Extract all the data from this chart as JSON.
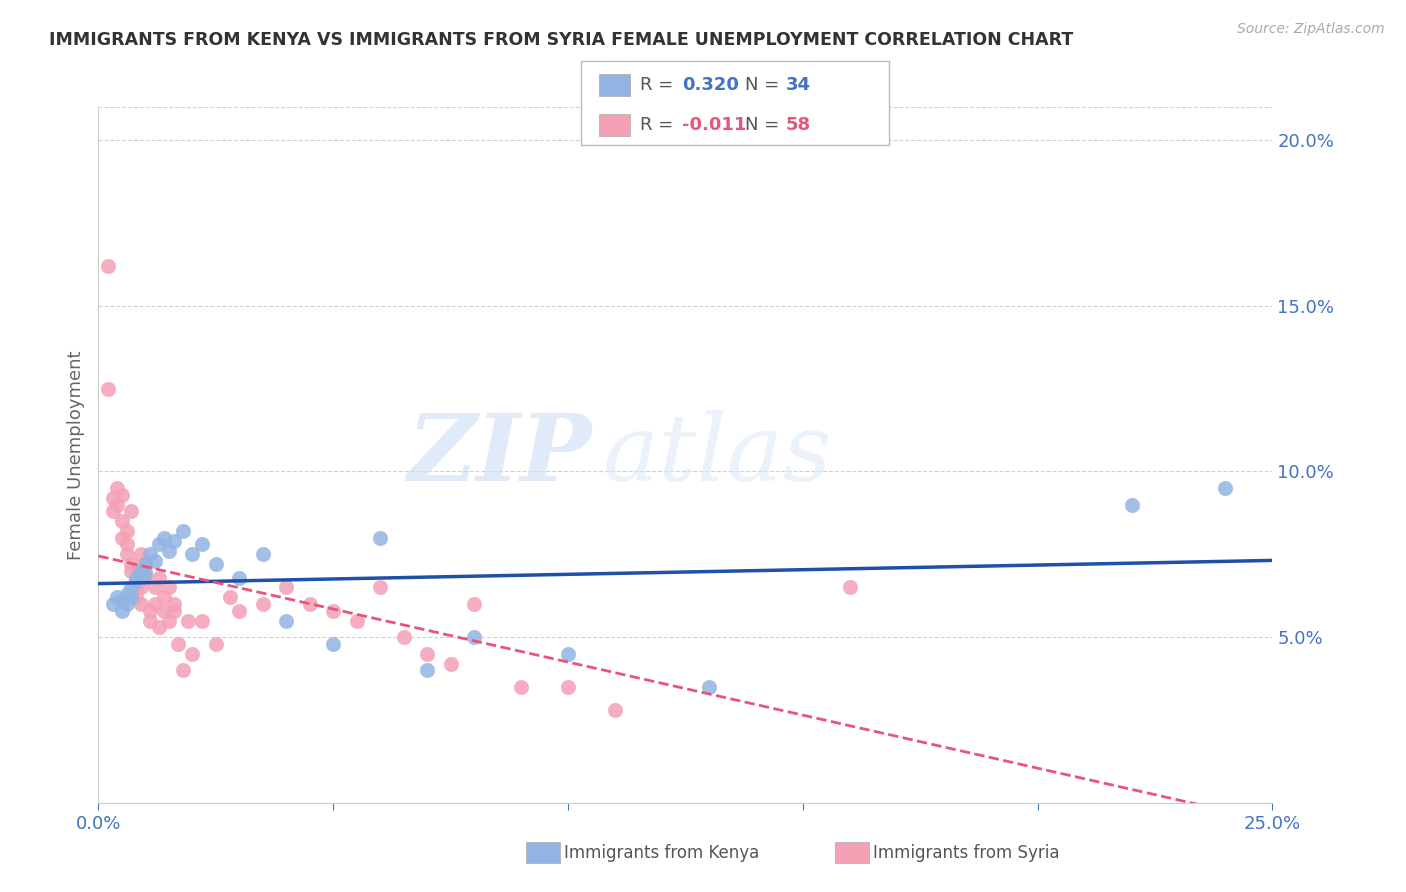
{
  "title": "IMMIGRANTS FROM KENYA VS IMMIGRANTS FROM SYRIA FEMALE UNEMPLOYMENT CORRELATION CHART",
  "source": "Source: ZipAtlas.com",
  "ylabel": "Female Unemployment",
  "x_min": 0.0,
  "x_max": 0.25,
  "y_min": 0.0,
  "y_max": 0.21,
  "kenya_color": "#92b4e3",
  "syria_color": "#f4a0b5",
  "kenya_line_color": "#1f4fa8",
  "syria_line_color": "#e8557a",
  "watermark_zip": "ZIP",
  "watermark_atlas": "atlas",
  "background_color": "#ffffff",
  "grid_color": "#cccccc",
  "title_color": "#333333",
  "axis_label_color": "#666666",
  "right_axis_color": "#4472c4",
  "bottom_axis_color": "#4472c4",
  "kenya_R": 0.32,
  "kenya_N": 34,
  "syria_R": -0.011,
  "syria_N": 58,
  "kenya_scatter_x": [
    0.003,
    0.004,
    0.005,
    0.005,
    0.006,
    0.006,
    0.007,
    0.007,
    0.008,
    0.008,
    0.009,
    0.01,
    0.01,
    0.011,
    0.012,
    0.013,
    0.014,
    0.015,
    0.016,
    0.018,
    0.02,
    0.022,
    0.025,
    0.03,
    0.035,
    0.04,
    0.05,
    0.06,
    0.07,
    0.08,
    0.1,
    0.13,
    0.22,
    0.24
  ],
  "kenya_scatter_y": [
    0.06,
    0.062,
    0.061,
    0.058,
    0.063,
    0.06,
    0.065,
    0.062,
    0.068,
    0.067,
    0.07,
    0.072,
    0.069,
    0.075,
    0.073,
    0.078,
    0.08,
    0.076,
    0.079,
    0.082,
    0.075,
    0.078,
    0.072,
    0.068,
    0.075,
    0.055,
    0.048,
    0.08,
    0.04,
    0.05,
    0.045,
    0.035,
    0.09,
    0.095
  ],
  "syria_scatter_x": [
    0.002,
    0.002,
    0.003,
    0.003,
    0.004,
    0.004,
    0.005,
    0.005,
    0.005,
    0.006,
    0.006,
    0.006,
    0.007,
    0.007,
    0.007,
    0.008,
    0.008,
    0.008,
    0.009,
    0.009,
    0.009,
    0.01,
    0.01,
    0.01,
    0.011,
    0.011,
    0.012,
    0.012,
    0.013,
    0.013,
    0.014,
    0.014,
    0.015,
    0.015,
    0.016,
    0.016,
    0.017,
    0.018,
    0.019,
    0.02,
    0.022,
    0.025,
    0.028,
    0.03,
    0.035,
    0.04,
    0.045,
    0.05,
    0.055,
    0.06,
    0.065,
    0.07,
    0.075,
    0.08,
    0.09,
    0.1,
    0.11,
    0.16
  ],
  "syria_scatter_y": [
    0.162,
    0.125,
    0.092,
    0.088,
    0.095,
    0.09,
    0.093,
    0.085,
    0.08,
    0.075,
    0.078,
    0.082,
    0.088,
    0.07,
    0.072,
    0.068,
    0.065,
    0.062,
    0.06,
    0.075,
    0.065,
    0.072,
    0.07,
    0.068,
    0.058,
    0.055,
    0.06,
    0.065,
    0.053,
    0.068,
    0.062,
    0.058,
    0.065,
    0.055,
    0.06,
    0.058,
    0.048,
    0.04,
    0.055,
    0.045,
    0.055,
    0.048,
    0.062,
    0.058,
    0.06,
    0.065,
    0.06,
    0.058,
    0.055,
    0.065,
    0.05,
    0.045,
    0.042,
    0.06,
    0.035,
    0.035,
    0.028,
    0.065
  ]
}
